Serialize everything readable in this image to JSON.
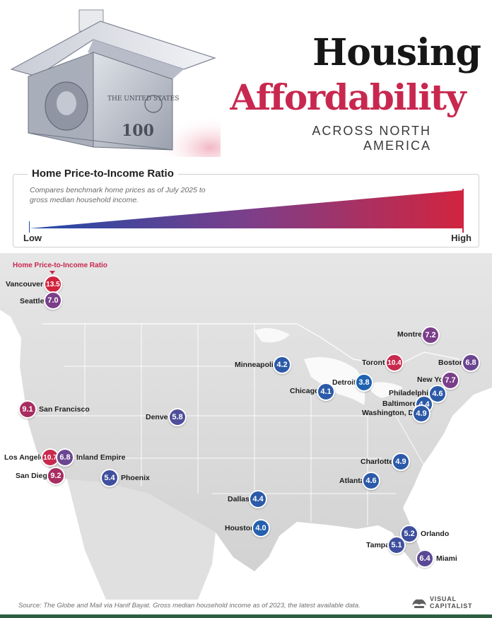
{
  "header": {
    "title_line1": "Housing",
    "title_line2": "Affordability",
    "subtitle": "ACROSS NORTH AMERICA"
  },
  "legend": {
    "title": "Home Price-to-Income Ratio",
    "description": "Compares benchmark home prices as of July 2025 to gross median household income.",
    "low": "Low",
    "high": "High"
  },
  "map": {
    "label": "Home Price-to-Income Ratio",
    "cities": [
      {
        "name": "Vancouver",
        "value": "13.5",
        "color": "#d1243f"
      },
      {
        "name": "Seattle",
        "value": "7.0",
        "color": "#7b3f8a"
      },
      {
        "name": "Montreal",
        "value": "7.2",
        "color": "#7b3f8a"
      },
      {
        "name": "Boston",
        "value": "6.8",
        "color": "#6b4591"
      },
      {
        "name": "Minneapolis",
        "value": "4.2",
        "color": "#2c5aa8"
      },
      {
        "name": "Toronto",
        "value": "10.4",
        "color": "#c82a4d"
      },
      {
        "name": "New York",
        "value": "7.7",
        "color": "#7b3f8a"
      },
      {
        "name": "Detroit",
        "value": "3.8",
        "color": "#1e63b0"
      },
      {
        "name": "Chicago",
        "value": "4.1",
        "color": "#2c5aa8"
      },
      {
        "name": "Philadelphia",
        "value": "4.6",
        "color": "#2c5aa8"
      },
      {
        "name": "Baltimore",
        "value": "4.4",
        "color": "#2c5aa8"
      },
      {
        "name": "Washington, DC",
        "value": "4.9",
        "color": "#2c5aa8"
      },
      {
        "name": "San Francisco",
        "value": "9.1",
        "color": "#a82d60"
      },
      {
        "name": "Denver",
        "value": "5.8",
        "color": "#4f4f9a"
      },
      {
        "name": "Los Angeles",
        "value": "10.7",
        "color": "#c82a4d"
      },
      {
        "name": "Inland Empire",
        "value": "6.8",
        "color": "#6b4591"
      },
      {
        "name": "San Diego",
        "value": "9.2",
        "color": "#a82d60"
      },
      {
        "name": "Phoenix",
        "value": "5.4",
        "color": "#3e4f9e"
      },
      {
        "name": "Charlotte",
        "value": "4.9",
        "color": "#2c5aa8"
      },
      {
        "name": "Atlanta",
        "value": "4.6",
        "color": "#2c5aa8"
      },
      {
        "name": "Dallas",
        "value": "4.4",
        "color": "#2c5aa8"
      },
      {
        "name": "Houston",
        "value": "4.0",
        "color": "#2560ad"
      },
      {
        "name": "Orlando",
        "value": "5.2",
        "color": "#3e4f9e"
      },
      {
        "name": "Tampa",
        "value": "5.1",
        "color": "#3e4f9e"
      },
      {
        "name": "Miami",
        "value": "6.4",
        "color": "#5b4895"
      }
    ]
  },
  "footer": {
    "source": "Source: The Globe and Mail via Hanif Bayat. Gross median household income as of 2023, the latest available data.",
    "brand_line1": "VISUAL",
    "brand_line2": "CAPITALIST"
  },
  "colors": {
    "accent": "#c8284f",
    "low": "#1f4aa8",
    "high": "#d1243f",
    "footer_bar": "#2d5f3f"
  }
}
